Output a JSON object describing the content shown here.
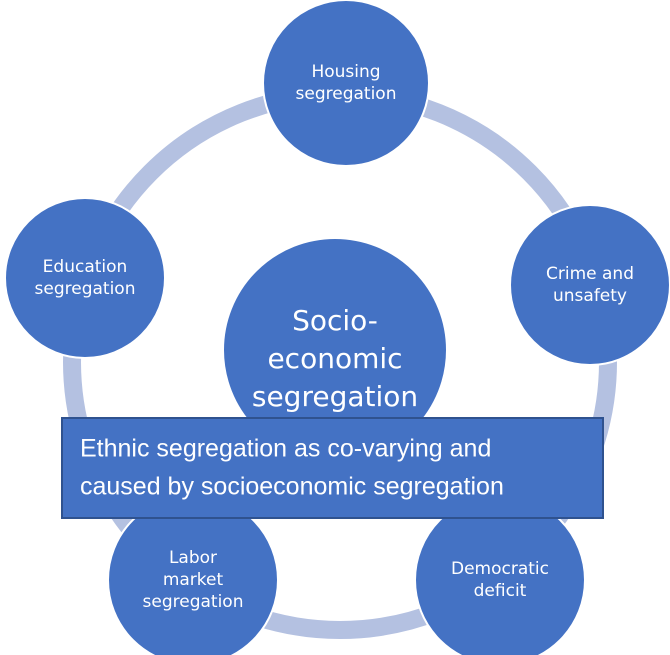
{
  "nodes": [
    {
      "lines": [
        "Housing",
        "segregation"
      ]
    },
    {
      "lines": [
        "Crime and",
        "unsafety"
      ]
    },
    {
      "lines": [
        "Democratic",
        "deficit"
      ]
    },
    {
      "lines": [
        "Labor",
        "market",
        "segregation"
      ]
    },
    {
      "lines": [
        "Education",
        "segregation"
      ]
    }
  ],
  "center": {
    "lines": [
      "Socio-",
      "economic",
      "segregation"
    ]
  },
  "box": {
    "lines": [
      "Ethnic segregation as co-varying and",
      "caused by socioeconomic segregation"
    ]
  }
}
